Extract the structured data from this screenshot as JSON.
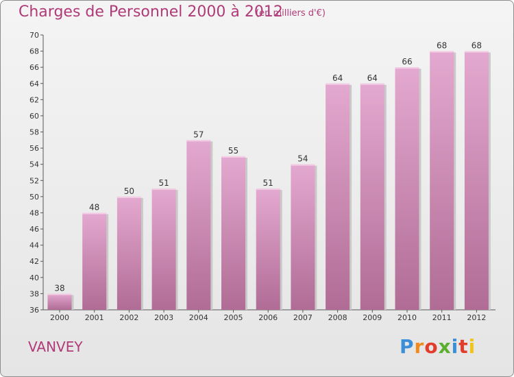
{
  "header": {
    "title": "Charges de Personnel 2000 à 2012",
    "subtitle": "(en milliers d'€)"
  },
  "footer": {
    "commune": "VANVEY",
    "logo_text": "Proxiti"
  },
  "colors": {
    "accent": "#b03a78",
    "bar_top": "#e4a9d0",
    "bar_bottom": "#b06c95",
    "logo": [
      "#3b8ed8",
      "#f08a1c",
      "#e23c2a",
      "#5cae2e",
      "#3b8ed8",
      "#e23c2a",
      "#f0c419"
    ]
  },
  "chart_data": {
    "type": "bar",
    "title": "Charges de Personnel 2000 à 2012",
    "subtitle": "(en milliers d'€)",
    "categories": [
      "2000",
      "2001",
      "2002",
      "2003",
      "2004",
      "2005",
      "2006",
      "2007",
      "2008",
      "2009",
      "2010",
      "2011",
      "2012"
    ],
    "values": [
      38,
      48,
      50,
      51,
      57,
      55,
      51,
      54,
      64,
      64,
      66,
      68,
      68
    ],
    "ylim": [
      36,
      70
    ],
    "yticks": [
      36,
      38,
      40,
      42,
      44,
      46,
      48,
      50,
      52,
      54,
      56,
      58,
      60,
      62,
      64,
      66,
      68,
      70
    ],
    "grid": "none",
    "data_labels": true
  }
}
